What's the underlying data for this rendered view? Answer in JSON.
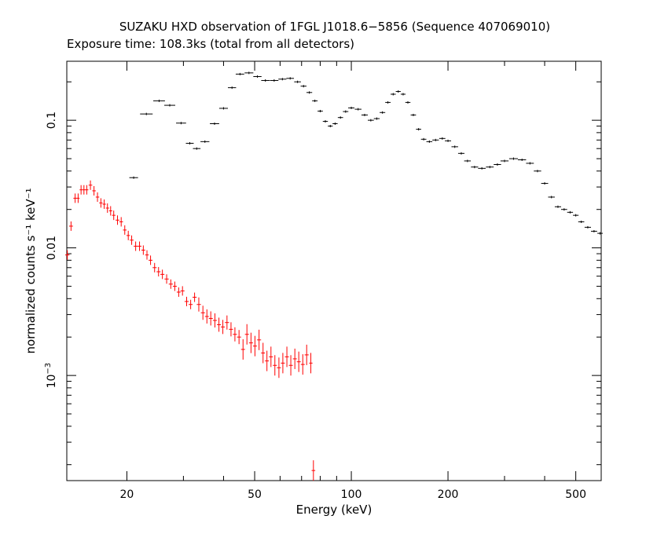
{
  "chart_data": {
    "type": "scatter",
    "title": "SUZAKU HXD observation of 1FGL J1018.6−5856 (Sequence 407069010)",
    "subtitle": "Exposure time: 108.3ks (total from all detectors)",
    "xlabel": "Energy (keV)",
    "ylabel": "normalized counts s⁻¹ keV⁻¹",
    "x_scale": "log",
    "y_scale": "log",
    "xlim": [
      13.0,
      600.0
    ],
    "ylim": [
      0.00015,
      0.29
    ],
    "x_ticks": [
      {
        "value": 20,
        "label": "20"
      },
      {
        "value": 50,
        "label": "50"
      },
      {
        "value": 100,
        "label": "100"
      },
      {
        "value": 200,
        "label": "200"
      },
      {
        "value": 500,
        "label": "500"
      }
    ],
    "y_ticks": [
      {
        "value": 0.1,
        "label": "0.1"
      },
      {
        "value": 0.01,
        "label": "0.01"
      },
      {
        "value": 0.001,
        "label": "10",
        "exponent": "−3"
      }
    ],
    "grid": false,
    "legend": "none",
    "series": [
      {
        "color": "#000000",
        "points": [
          [
            21.0,
            0.0355
          ],
          [
            23.0,
            0.112
          ],
          [
            25.2,
            0.142
          ],
          [
            27.2,
            0.131
          ],
          [
            29.5,
            0.095
          ],
          [
            31.4,
            0.066
          ],
          [
            33.0,
            0.06
          ],
          [
            35.0,
            0.068
          ],
          [
            37.5,
            0.094
          ],
          [
            40.0,
            0.124
          ],
          [
            42.5,
            0.18
          ],
          [
            45.0,
            0.23
          ],
          [
            48.0,
            0.235
          ],
          [
            51.0,
            0.22
          ],
          [
            54.0,
            0.205
          ],
          [
            57.5,
            0.205
          ],
          [
            61.0,
            0.21
          ],
          [
            64.5,
            0.213
          ],
          [
            68.0,
            0.2
          ],
          [
            71.0,
            0.185
          ],
          [
            74.0,
            0.165
          ],
          [
            77.0,
            0.142
          ],
          [
            80.0,
            0.118
          ],
          [
            83.0,
            0.098
          ],
          [
            86.0,
            0.09
          ],
          [
            89.0,
            0.094
          ],
          [
            92.5,
            0.105
          ],
          [
            96.0,
            0.117
          ],
          [
            100.0,
            0.125
          ],
          [
            105.0,
            0.122
          ],
          [
            110.0,
            0.11
          ],
          [
            115.0,
            0.1
          ],
          [
            120.0,
            0.103
          ],
          [
            125.0,
            0.115
          ],
          [
            130.0,
            0.138
          ],
          [
            135.0,
            0.16
          ],
          [
            140.0,
            0.168
          ],
          [
            145.0,
            0.16
          ],
          [
            150.0,
            0.138
          ],
          [
            156.0,
            0.11
          ],
          [
            162.0,
            0.085
          ],
          [
            168.0,
            0.071
          ],
          [
            175.0,
            0.068
          ],
          [
            183.0,
            0.07
          ],
          [
            192.0,
            0.072
          ],
          [
            200.0,
            0.069
          ],
          [
            210.0,
            0.062
          ],
          [
            220.0,
            0.055
          ],
          [
            230.0,
            0.048
          ],
          [
            242.0,
            0.043
          ],
          [
            255.0,
            0.042
          ],
          [
            270.0,
            0.043
          ],
          [
            285.0,
            0.045
          ],
          [
            300.0,
            0.048
          ],
          [
            320.0,
            0.05
          ],
          [
            340.0,
            0.049
          ],
          [
            360.0,
            0.046
          ],
          [
            380.0,
            0.04
          ],
          [
            400.0,
            0.032
          ],
          [
            420.0,
            0.025
          ],
          [
            440.0,
            0.021
          ],
          [
            460.0,
            0.02
          ],
          [
            480.0,
            0.019
          ],
          [
            500.0,
            0.018
          ],
          [
            520.0,
            0.016
          ],
          [
            545.0,
            0.0145
          ],
          [
            570.0,
            0.0135
          ],
          [
            595.0,
            0.013
          ]
        ]
      },
      {
        "color": "#ff0000",
        "points": [
          [
            13.05,
            0.0088
          ],
          [
            13.4,
            0.0148
          ],
          [
            13.8,
            0.0245
          ],
          [
            14.1,
            0.0245
          ],
          [
            14.4,
            0.0285
          ],
          [
            14.7,
            0.0285
          ],
          [
            15.0,
            0.0285
          ],
          [
            15.4,
            0.031
          ],
          [
            15.8,
            0.028
          ],
          [
            16.2,
            0.025
          ],
          [
            16.6,
            0.0225
          ],
          [
            17.0,
            0.022
          ],
          [
            17.4,
            0.0205
          ],
          [
            17.8,
            0.0195
          ],
          [
            18.2,
            0.018
          ],
          [
            18.7,
            0.0165
          ],
          [
            19.2,
            0.016
          ],
          [
            19.7,
            0.0138
          ],
          [
            20.2,
            0.0125
          ],
          [
            20.7,
            0.0115
          ],
          [
            21.3,
            0.0103
          ],
          [
            21.9,
            0.0103
          ],
          [
            22.5,
            0.0096
          ],
          [
            23.1,
            0.0088
          ],
          [
            23.7,
            0.008
          ],
          [
            24.4,
            0.007
          ],
          [
            25.1,
            0.0065
          ],
          [
            25.8,
            0.0062
          ],
          [
            26.6,
            0.0057
          ],
          [
            27.4,
            0.0052
          ],
          [
            28.2,
            0.005
          ],
          [
            29.0,
            0.0045
          ],
          [
            29.8,
            0.0046
          ],
          [
            30.7,
            0.0038
          ],
          [
            31.6,
            0.0036
          ],
          [
            32.5,
            0.0041
          ],
          [
            33.5,
            0.0036
          ],
          [
            34.5,
            0.0031
          ],
          [
            35.5,
            0.0029
          ],
          [
            36.5,
            0.0028
          ],
          [
            37.6,
            0.0027
          ],
          [
            38.7,
            0.0025
          ],
          [
            39.8,
            0.0024
          ],
          [
            41.0,
            0.0026
          ],
          [
            42.2,
            0.0023
          ],
          [
            43.4,
            0.0021
          ],
          [
            44.7,
            0.002
          ],
          [
            46.0,
            0.0016
          ],
          [
            47.3,
            0.0021
          ],
          [
            48.7,
            0.0018
          ],
          [
            50.1,
            0.0017
          ],
          [
            51.6,
            0.0019
          ],
          [
            53.1,
            0.0015
          ],
          [
            54.6,
            0.0013
          ],
          [
            56.2,
            0.0014
          ],
          [
            57.8,
            0.0012
          ],
          [
            59.5,
            0.00115
          ],
          [
            61.2,
            0.00125
          ],
          [
            63.0,
            0.0014
          ],
          [
            64.8,
            0.0012
          ],
          [
            66.7,
            0.00135
          ],
          [
            68.6,
            0.00128
          ],
          [
            70.6,
            0.00122
          ],
          [
            72.6,
            0.00145
          ],
          [
            74.8,
            0.00125
          ],
          [
            76.2,
            0.00018
          ]
        ]
      }
    ]
  }
}
